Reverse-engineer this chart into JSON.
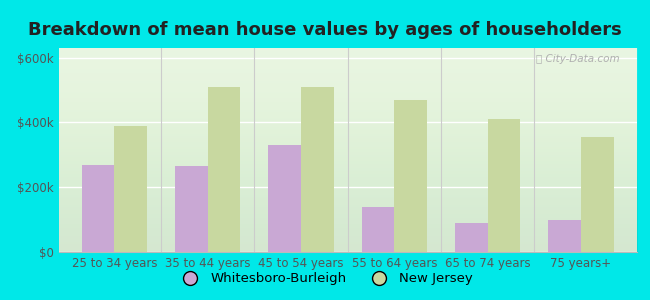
{
  "title": "Breakdown of mean house values by ages of householders",
  "categories": [
    "25 to 34 years",
    "35 to 44 years",
    "45 to 54 years",
    "55 to 64 years",
    "65 to 74 years",
    "75 years+"
  ],
  "whitesboro": [
    270000,
    265000,
    330000,
    140000,
    90000,
    100000
  ],
  "new_jersey": [
    390000,
    510000,
    510000,
    470000,
    410000,
    355000
  ],
  "color_whitesboro": "#c9a8d4",
  "color_nj": "#c8d8a0",
  "background_outer": "#00e8e8",
  "background_inner": "#e8f5e0",
  "ylabel_ticks": [
    "$0",
    "$200k",
    "$400k",
    "$600k"
  ],
  "ytick_vals": [
    0,
    200000,
    400000,
    600000
  ],
  "legend_whitesboro": "Whitesboro-Burleigh",
  "legend_nj": "New Jersey",
  "title_fontsize": 13,
  "tick_fontsize": 8.5,
  "legend_fontsize": 9.5,
  "bar_width": 0.35,
  "ylim": [
    0,
    630000
  ],
  "watermark": "ⓘ City-Data.com"
}
